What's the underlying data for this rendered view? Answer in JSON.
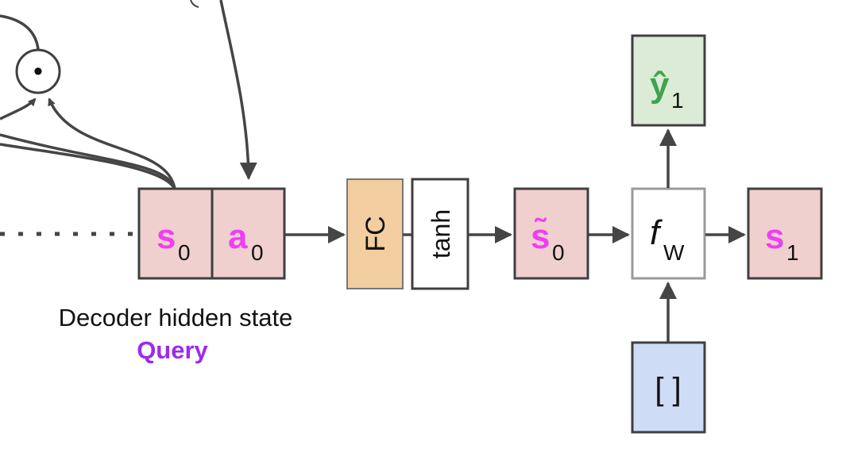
{
  "colors": {
    "pink_fill": "#f0cfcf",
    "magenta": "#ee3ff0",
    "fc_fill": "#f2cea0",
    "output_fill": "#dcebd6",
    "input_fill": "#cedcf5",
    "green_symbol": "#3fa34f",
    "purple": "#9a2cf0",
    "box_stroke": "#3f3f3f",
    "fw_stroke": "#9a9a9a",
    "arrow": "#454545"
  },
  "decoder_state": {
    "symbol": "s",
    "subscript": "0"
  },
  "context_vector": {
    "symbol": "a",
    "subscript": "0"
  },
  "fc_layer": {
    "label": "FC"
  },
  "tanh_layer": {
    "label": "tanh"
  },
  "combined_state": {
    "symbol": "s̃",
    "subscript": "0"
  },
  "rnn_cell": {
    "symbol": "f",
    "subscript": "W"
  },
  "next_state": {
    "symbol": "s",
    "subscript": "1"
  },
  "output_token": {
    "symbol": "ŷ",
    "subscript": "1"
  },
  "input_token": {
    "label": "[ ]"
  },
  "dot_product": {
    "symbol": "•"
  },
  "caption": {
    "line1": "Decoder hidden state",
    "line2": "Query"
  }
}
